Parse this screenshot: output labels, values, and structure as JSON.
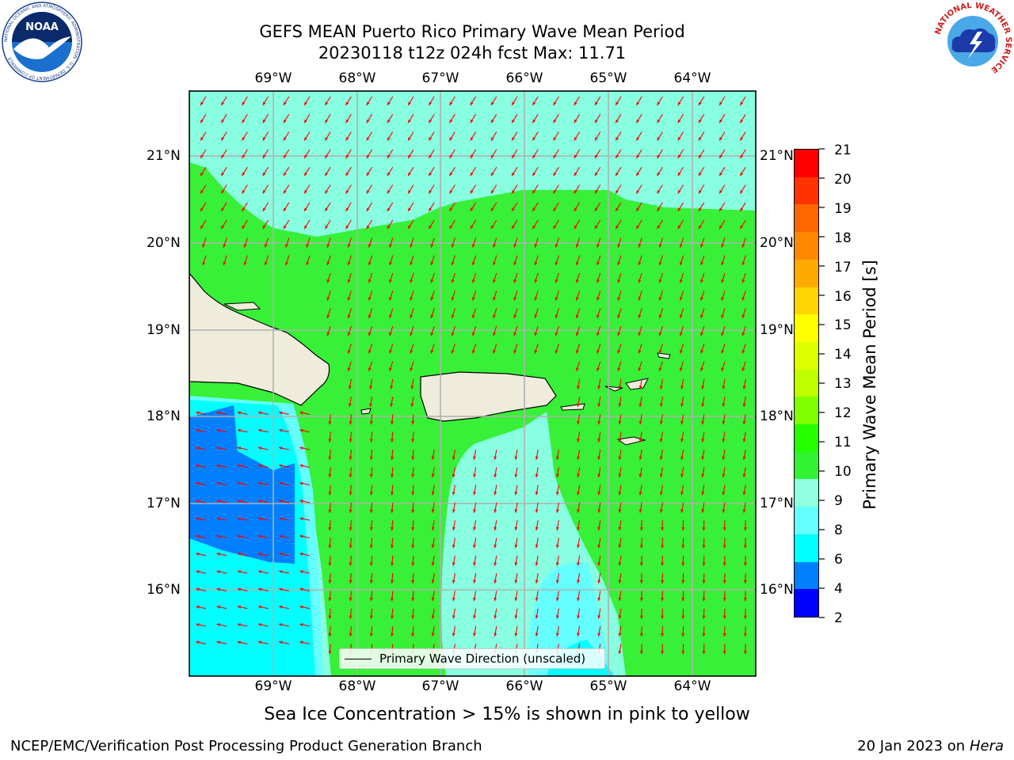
{
  "header": {
    "title_line1": "GEFS MEAN Puerto Rico Primary Wave Mean Period",
    "title_line2": "20230118 t12z 024h fcst   Max: 11.71",
    "noaa_logo_text": "NOAA",
    "noaa_ring_text": "NATIONAL OCEANIC AND ATMOSPHERIC ADMINISTRATION · U.S. DEPARTMENT OF COMMERCE",
    "nws_ring_text": "NATIONAL WEATHER SERVICE"
  },
  "map": {
    "lon_labels": [
      "69°W",
      "68°W",
      "67°W",
      "66°W",
      "65°W",
      "64°W"
    ],
    "lat_labels": [
      "21°N",
      "20°N",
      "19°N",
      "18°N",
      "17°N",
      "16°N"
    ],
    "legend_label": "Primary Wave Direction (unscaled)",
    "arrow_color": "#ff0000",
    "land_color": "#efecdc",
    "colors": {
      "c4_6": "#0080ff",
      "c6_8": "#00ffff",
      "c8_9": "#66ffff",
      "c9_10": "#88ffe0",
      "c10_11": "#38f038"
    }
  },
  "colorbar": {
    "label": "Primary Wave Mean Period [s]",
    "ticks": [
      "21",
      "20",
      "19",
      "18",
      "17",
      "16",
      "15",
      "14",
      "13",
      "12",
      "11",
      "10",
      "9",
      "8",
      "6",
      "4",
      "2"
    ],
    "colors_bottom_to_top": [
      "#0000ff",
      "#0080ff",
      "#00ffff",
      "#66ffff",
      "#8fffdf",
      "#33f233",
      "#26ff00",
      "#80ff00",
      "#bfff00",
      "#ddff00",
      "#ffff00",
      "#ffd400",
      "#ffaa00",
      "#ff8800",
      "#ff6600",
      "#ff3300",
      "#ff0000"
    ]
  },
  "footer": {
    "sea_ice_note": "Sea Ice Concentration > 15% is shown in pink to yellow",
    "branch": "NCEP/EMC/Verification Post Processing Product Generation Branch",
    "date_prefix": "20 Jan 2023 on ",
    "date_host": "Hera"
  }
}
